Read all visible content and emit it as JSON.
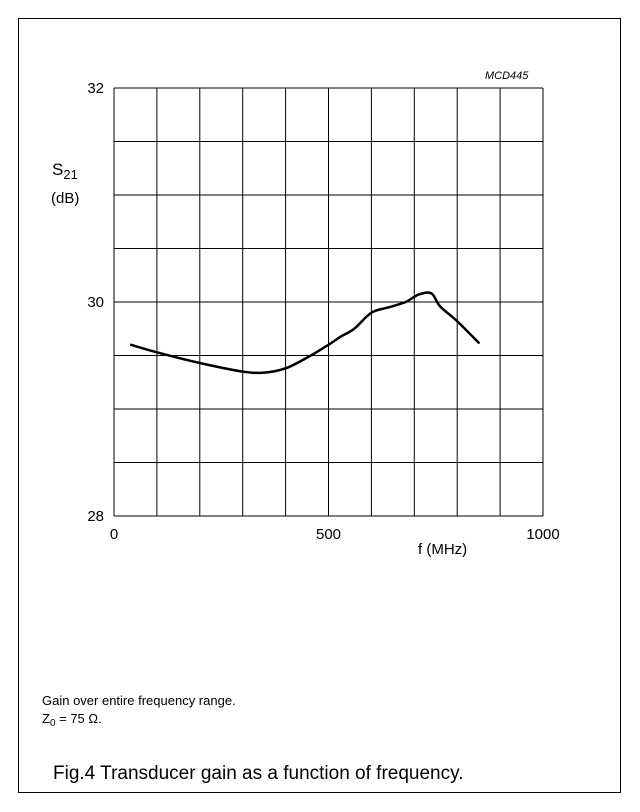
{
  "chart_data": {
    "type": "line",
    "figure_code": "MCD445",
    "xlabel": "f  (MHz)",
    "ylabel_symbol": "S",
    "ylabel_subscript": "21",
    "ylabel_unit": "(dB)",
    "xlim": [
      0,
      1000
    ],
    "ylim": [
      28,
      32
    ],
    "x_tick_labels": [
      "0",
      "500",
      "1000"
    ],
    "y_tick_labels": [
      "28",
      "30",
      "32"
    ],
    "x_grid_step": 100,
    "y_grid_step": 0.5,
    "grid": true,
    "series": [
      {
        "x": [
          40,
          100,
          200,
          300,
          350,
          400,
          450,
          500,
          530,
          560,
          600,
          640,
          680,
          710,
          740,
          760,
          800,
          850
        ],
        "y": [
          29.6,
          29.53,
          29.43,
          29.35,
          29.34,
          29.38,
          29.48,
          29.6,
          29.68,
          29.75,
          29.9,
          29.95,
          30.0,
          30.07,
          30.08,
          29.96,
          29.82,
          29.62
        ]
      }
    ]
  },
  "notes": {
    "line1": "Gain over entire frequency range.",
    "line2_symbol": "Z",
    "line2_subscript": "0",
    "line2_rest": " = 75 Ω."
  },
  "caption": "Fig.4  Transducer gain as a function of frequency."
}
